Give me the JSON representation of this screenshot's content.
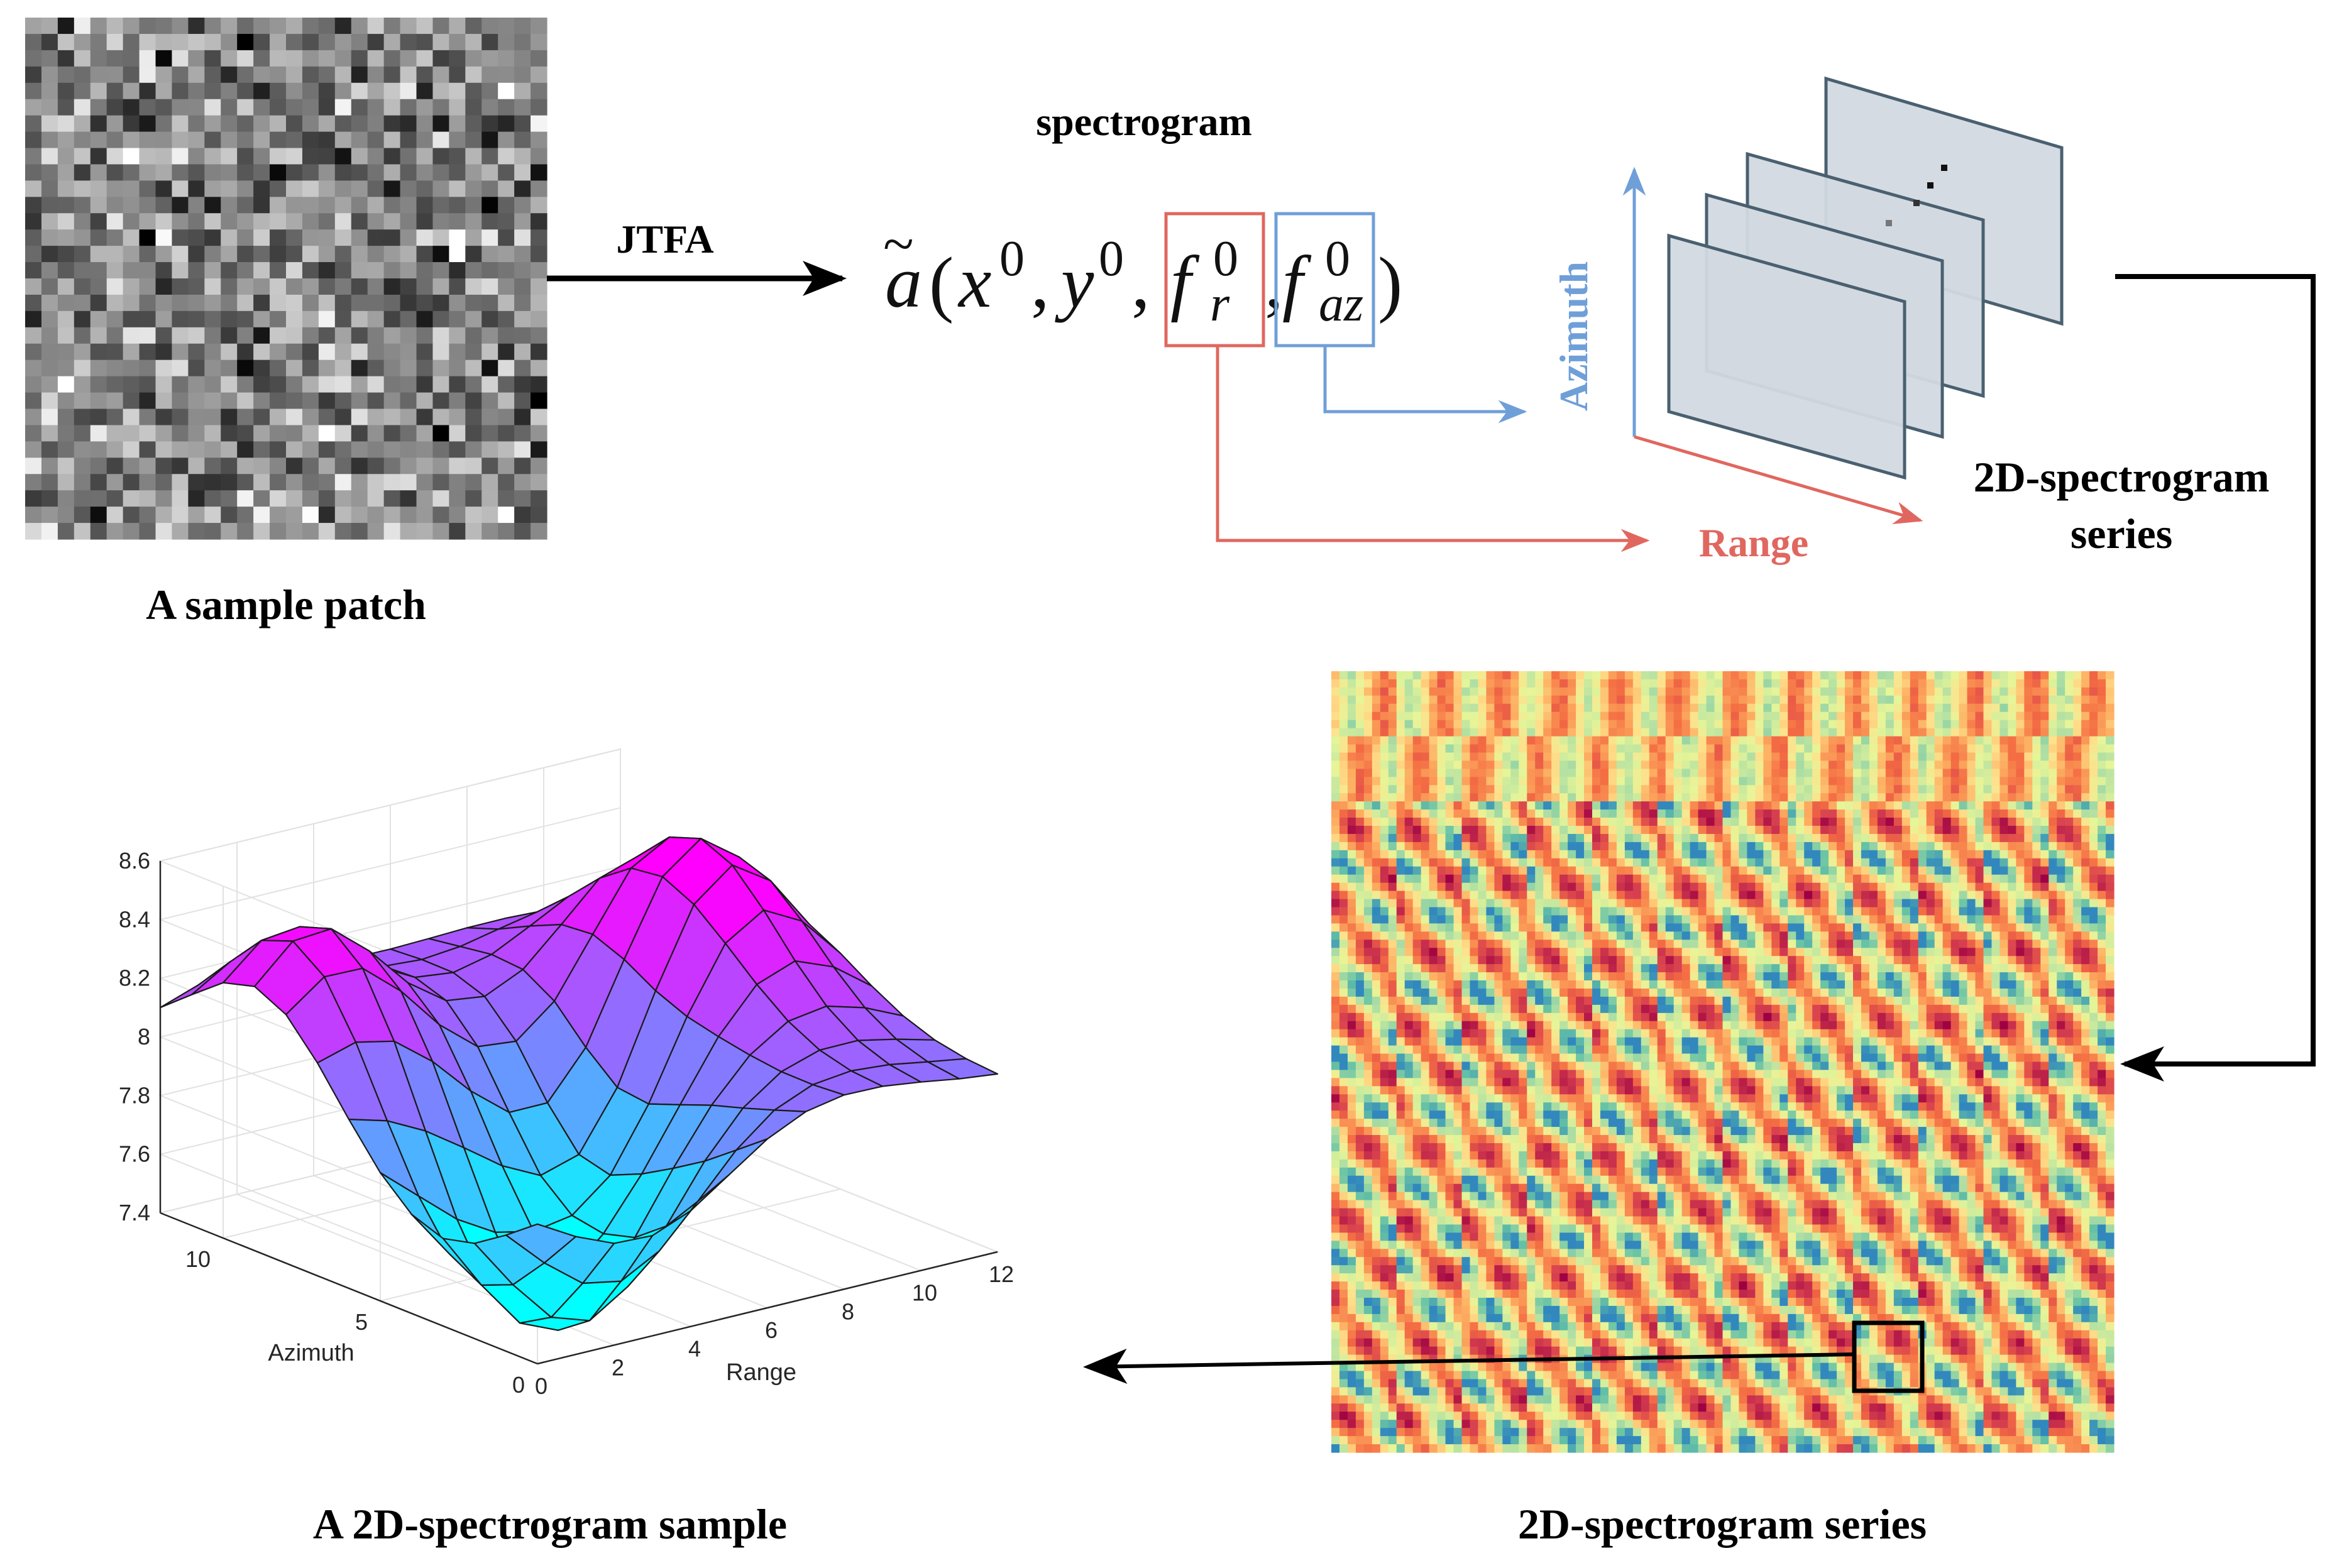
{
  "labels": {
    "jtfa": "JTFA",
    "spectrogram": "spectrogram",
    "sample_patch": "A sample patch",
    "series_top_line1": "2D-spectrogram",
    "series_top_line2": "series",
    "series_bottom": "2D-spectrogram series",
    "sample_2d": "A 2D-spectrogram sample",
    "azimuth_axis": "Azimuth",
    "range_axis": "Range",
    "ellipsis": "⋮"
  },
  "formula": {
    "a": "a",
    "tilde": "~",
    "x": "x",
    "y": "y",
    "f": "f",
    "sup0": "0",
    "sub_r": "r",
    "sub_az": "az",
    "open_paren": "(",
    "close_paren": ")",
    "comma": ","
  },
  "colors": {
    "range_red": "#e0675f",
    "azimuth_blue": "#6f9fd8",
    "plane_fill": "#d2d9e0",
    "plane_stroke": "#4a6070",
    "arrow_black": "#000000"
  },
  "chart_data": {
    "type": "surface",
    "title": "",
    "xlabel": "Range",
    "ylabel": "Azimuth",
    "zlabel": "",
    "xlim": [
      0,
      12
    ],
    "ylim": [
      0,
      12
    ],
    "zlim": [
      7.4,
      8.6
    ],
    "x_ticks": [
      "0",
      "2",
      "4",
      "6",
      "8",
      "10",
      "12"
    ],
    "y_ticks": [
      "0",
      "5",
      "10"
    ],
    "z_ticks": [
      "7.4",
      "7.6",
      "7.8",
      "8",
      "8.2",
      "8.4",
      "8.6"
    ],
    "colormap": "cool",
    "grid": true
  }
}
